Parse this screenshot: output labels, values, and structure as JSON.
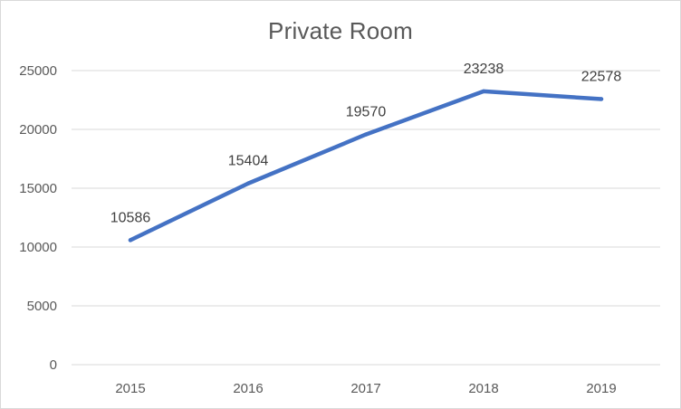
{
  "chart_data": {
    "type": "line",
    "title": "Private Room",
    "xlabel": "",
    "ylabel": "",
    "categories": [
      "2015",
      "2016",
      "2017",
      "2018",
      "2019"
    ],
    "series": [
      {
        "values": [
          10586,
          15404,
          19570,
          23238,
          22578
        ],
        "color": "#4472C4"
      }
    ],
    "data_labels": [
      "10586",
      "15404",
      "19570",
      "23238",
      "22578"
    ],
    "ylim": [
      0,
      25000
    ],
    "yticks": [
      0,
      5000,
      10000,
      15000,
      20000,
      25000
    ],
    "grid": true,
    "legend": "none"
  }
}
